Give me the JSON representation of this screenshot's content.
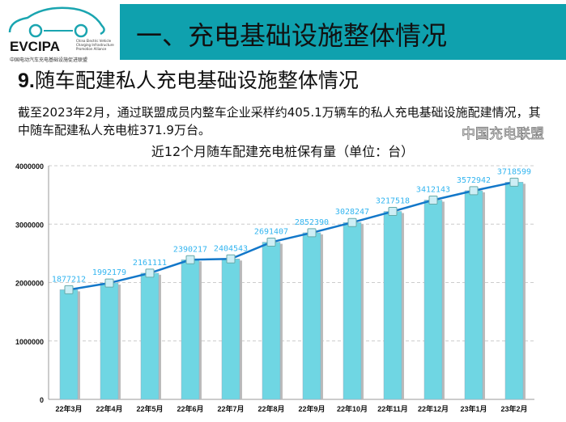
{
  "logo": {
    "name": "EVCIPA",
    "english": "China Electric Vehicle Charging Infrastructure Promotion Alliance",
    "chinese": "中国电动汽车充电基础设施促进联盟"
  },
  "header": {
    "title": "一、充电基础设施整体情况"
  },
  "section": {
    "number": "9.",
    "title": "随车配建私人充电基础设施整体情况"
  },
  "description": "截至2023年2月，通过联盟成员内整车企业采样约405.1万辆车的私人充电基础设施配建情况，其中随车配建私人充电桩371.9万台。",
  "watermark": "中国充电联盟",
  "colors": {
    "banner": "#0fa1ae",
    "bar": "#6fd6e3",
    "line": "#1277c9",
    "label": "#33b5f0"
  },
  "chart_data": {
    "type": "bar",
    "title": "近12个月随车配建充电桩保有量（单位：台）",
    "categories": [
      "22年3月",
      "22年4月",
      "22年5月",
      "22年6月",
      "22年7月",
      "22年8月",
      "22年9月",
      "22年10月",
      "22年11月",
      "22年12月",
      "23年1月",
      "23年2月"
    ],
    "values": [
      1877212,
      1992179,
      2161111,
      2390217,
      2404543,
      2691407,
      2852390,
      3028247,
      3217518,
      3412143,
      3572942,
      3718599
    ],
    "overlay_line": true,
    "ylim": [
      0,
      4000000
    ],
    "yticks": [
      "0",
      "1000000",
      "2000000",
      "3000000",
      "4000000"
    ],
    "grid": true
  }
}
